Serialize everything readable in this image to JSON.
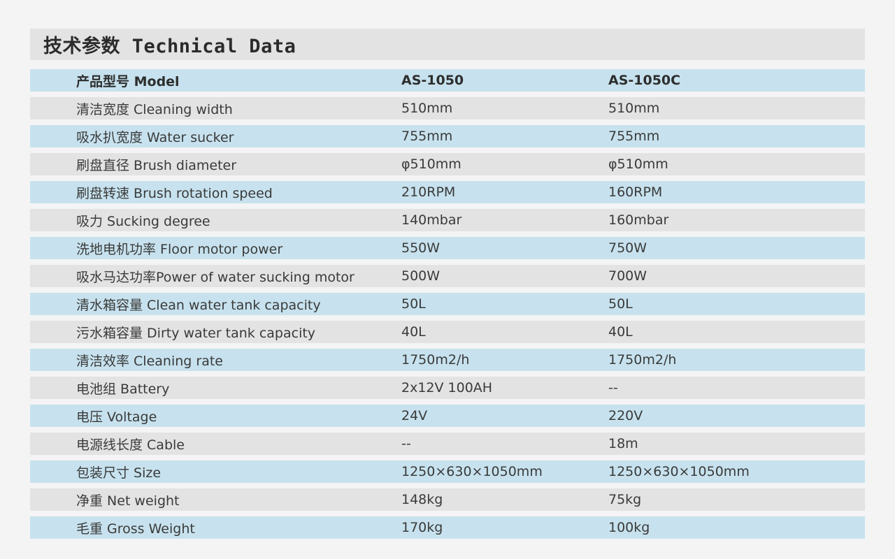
{
  "title": "技术参数 Technical Data",
  "header": {
    "label": "产品型号 Model",
    "model_a": "AS-1050",
    "model_b": "AS-1050C"
  },
  "rows": [
    {
      "label": "清洁宽度 Cleaning width",
      "a": "510mm",
      "b": "510mm"
    },
    {
      "label": "吸水扒宽度 Water sucker",
      "a": "755mm",
      "b": "755mm"
    },
    {
      "label": "刷盘直径 Brush diameter",
      "a": "φ510mm",
      "b": "φ510mm"
    },
    {
      "label": "刷盘转速 Brush rotation speed",
      "a": "210RPM",
      "b": "160RPM"
    },
    {
      "label": "吸力 Sucking degree",
      "a": "140mbar",
      "b": "160mbar"
    },
    {
      "label": "洗地电机功率 Floor motor power",
      "a": "550W",
      "b": "750W"
    },
    {
      "label": "吸水马达功率Power of water sucking motor",
      "a": "500W",
      "b": "700W"
    },
    {
      "label": "清水箱容量 Clean water tank capacity",
      "a": "50L",
      "b": "50L"
    },
    {
      "label": "污水箱容量 Dirty water tank capacity",
      "a": "40L",
      "b": "40L"
    },
    {
      "label": "清洁效率 Cleaning rate",
      "a": "1750m2/h",
      "b": "1750m2/h"
    },
    {
      "label": "电池组 Battery",
      "a": "2x12V 100AH",
      "b": "--"
    },
    {
      "label": "电压 Voltage",
      "a": "24V",
      "b": "220V"
    },
    {
      "label": "电源线长度 Cable",
      "a": "--",
      "b": "18m"
    },
    {
      "label": "包装尺寸 Size",
      "a": "1250×630×1050mm",
      "b": "1250×630×1050mm"
    },
    {
      "label": "净重 Net weight",
      "a": "148kg",
      "b": "75kg"
    },
    {
      "label": "毛重 Gross Weight",
      "a": "170kg",
      "b": "100kg"
    }
  ],
  "colors": {
    "row_blue": "#c7e2ee",
    "row_gray": "#e3e3e3",
    "page_background": "#f4f4f4"
  }
}
